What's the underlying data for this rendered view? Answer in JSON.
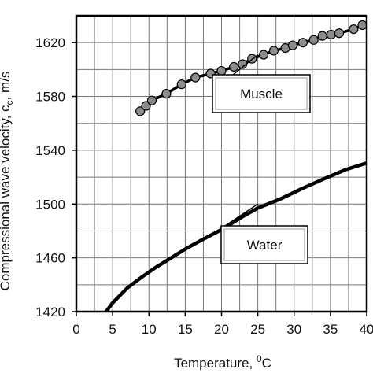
{
  "chart_data": {
    "type": "line",
    "xlabel": "Temperature, ",
    "xlabel_unit_sup": "0",
    "xlabel_unit": "C",
    "ylabel": "Compressional wave velocity, c",
    "ylabel_sub": "c",
    "ylabel_unit": ", m/s",
    "xlim": [
      0,
      40
    ],
    "ylim": [
      1420,
      1640
    ],
    "x_ticks": [
      0,
      5,
      10,
      15,
      20,
      25,
      30,
      35,
      40
    ],
    "y_ticks": [
      1420,
      1460,
      1500,
      1540,
      1580,
      1620
    ],
    "grid": true,
    "series": [
      {
        "name": "Muscle",
        "style": "line-with-markers",
        "marker_color": "#8c8c8c",
        "line_color": "#000000",
        "x": [
          8.8,
          9.6,
          10.4,
          12.4,
          14.5,
          16.4,
          18.5,
          20.0,
          21.7,
          22.9,
          24.2,
          25.8,
          27.2,
          28.8,
          29.8,
          31.2,
          32.7,
          33.9,
          35.1,
          36.2,
          38.2,
          39.4
        ],
        "values": [
          1569,
          1573,
          1577,
          1582,
          1589,
          1594,
          1597,
          1599,
          1602,
          1604,
          1608,
          1611,
          1614,
          1616,
          1618,
          1620,
          1622,
          1625,
          1626,
          1627,
          1630,
          1633
        ]
      },
      {
        "name": "Water",
        "style": "line",
        "line_color": "#000000",
        "x": [
          1.0,
          3.0,
          5.0,
          7.0,
          9.0,
          11.0,
          13.0,
          15.0,
          17.0,
          20.0,
          23.0,
          25.0,
          28.0,
          31.0,
          34.0,
          37.0,
          40.0
        ],
        "values": [
          1402.4,
          1412.2,
          1426.5,
          1437.5,
          1445.6,
          1453.1,
          1459.7,
          1466.5,
          1472.5,
          1481.0,
          1491.0,
          1497.0,
          1503.5,
          1511.3,
          1518.5,
          1525.4,
          1530.5
        ]
      }
    ],
    "annotations": [
      {
        "label": "Muscle",
        "target_x": 25.0,
        "target_y": 1611
      },
      {
        "label": "Water",
        "target_x": 25.0,
        "target_y": 1500
      }
    ]
  }
}
